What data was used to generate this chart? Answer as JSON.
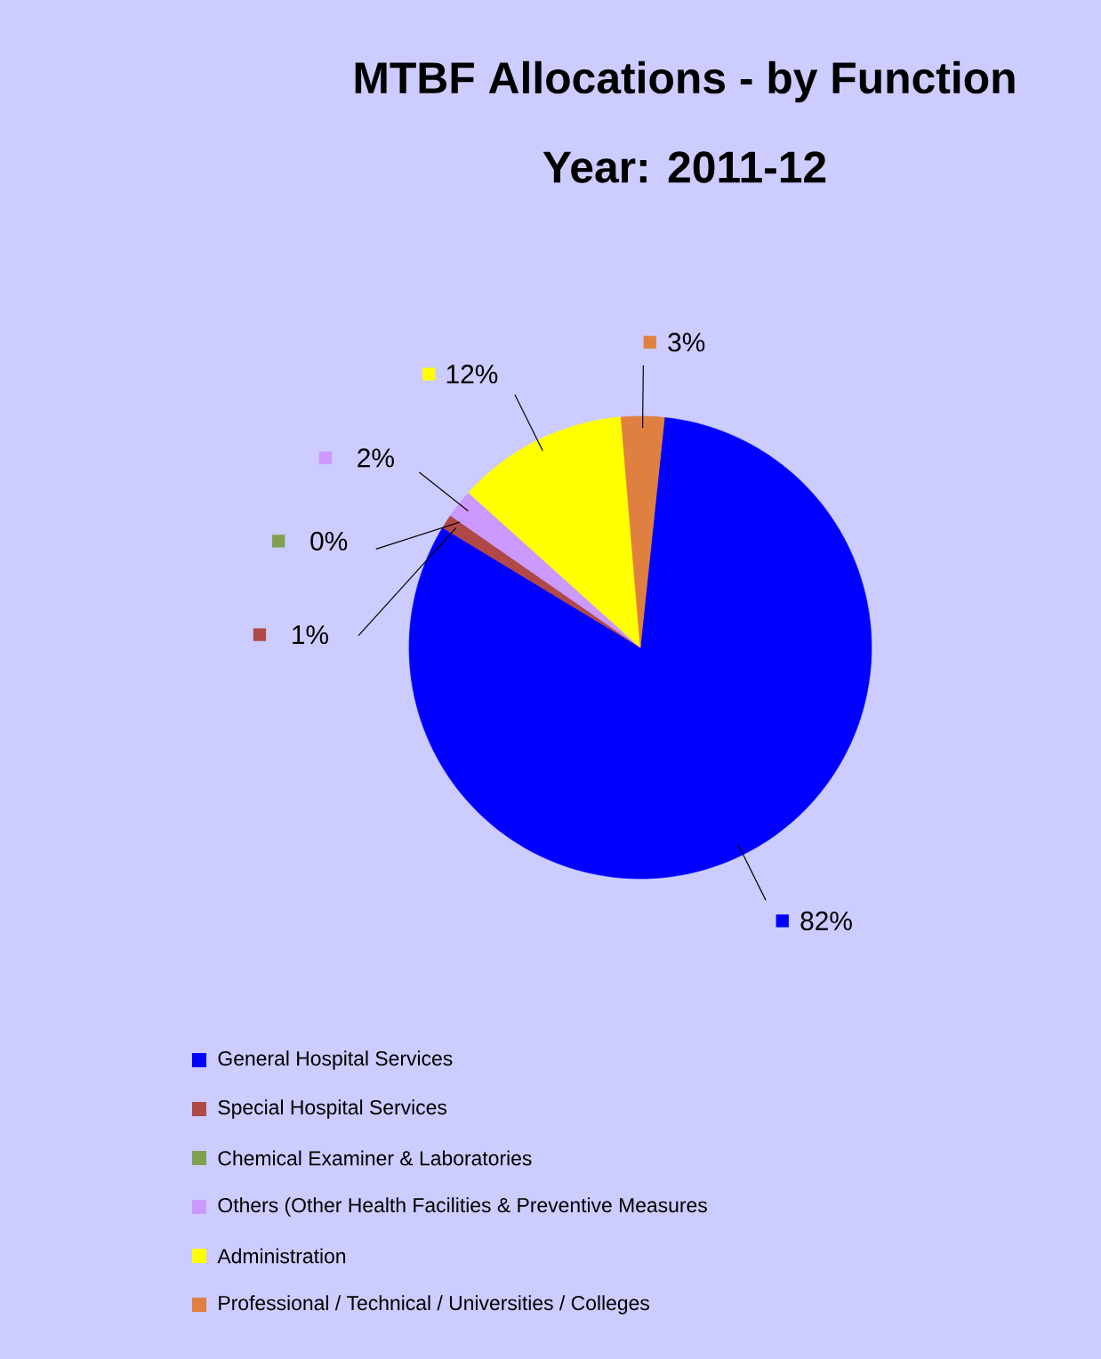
{
  "chart_data": {
    "type": "pie",
    "title": "MTBF Allocations - by Function",
    "subtitle": "Year: 2011-12",
    "categories": [
      "General Hospital Services",
      "Special Hospital Services",
      "Chemical Examiner & Laboratories",
      "Others (Other Health Facilities & Preventive Measures",
      "Administration",
      "Professional / Technical / Universities / Colleges"
    ],
    "values": [
      82,
      1,
      0,
      2,
      12,
      3
    ],
    "value_labels": [
      "82%",
      "1%",
      "0%",
      "2%",
      "12%",
      "3%"
    ],
    "colors": [
      "#0000ff",
      "#b04848",
      "#80a050",
      "#cc99ff",
      "#ffff00",
      "#e08040"
    ],
    "legend": "bottom"
  }
}
